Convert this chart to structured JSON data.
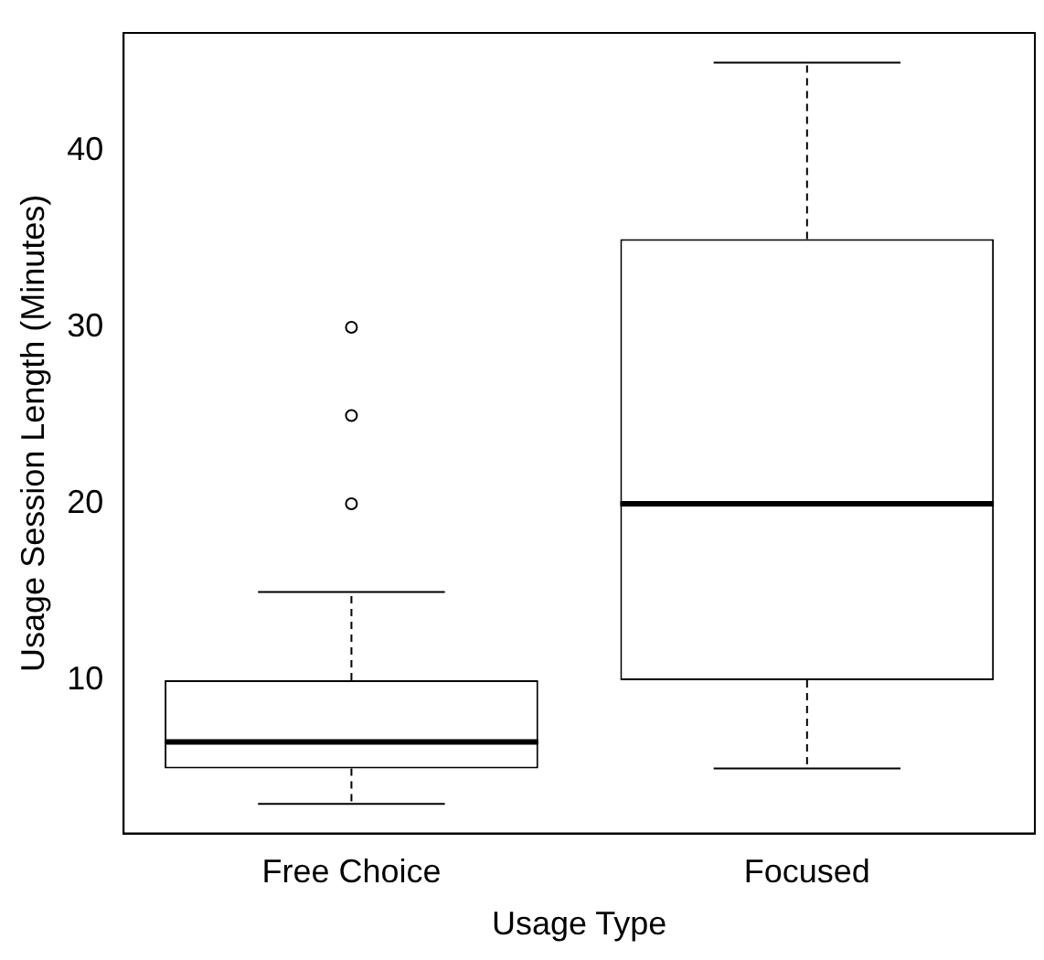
{
  "chart_data": {
    "type": "box",
    "xlabel": "Usage Type",
    "ylabel": "Usage Session Length (Minutes)",
    "categories": [
      "Free Choice",
      "Focused"
    ],
    "boxes": [
      {
        "low": 3,
        "q1": 5,
        "median": 6.5,
        "q3": 10,
        "high": 15,
        "outliers": [
          20,
          25,
          30
        ]
      },
      {
        "low": 5,
        "q1": 10,
        "median": 20,
        "q3": 35,
        "high": 45
      }
    ],
    "ylim": [
      1.32,
      46.68
    ],
    "yticks": [
      10,
      20,
      30,
      40
    ],
    "grid": false,
    "legend": false
  }
}
